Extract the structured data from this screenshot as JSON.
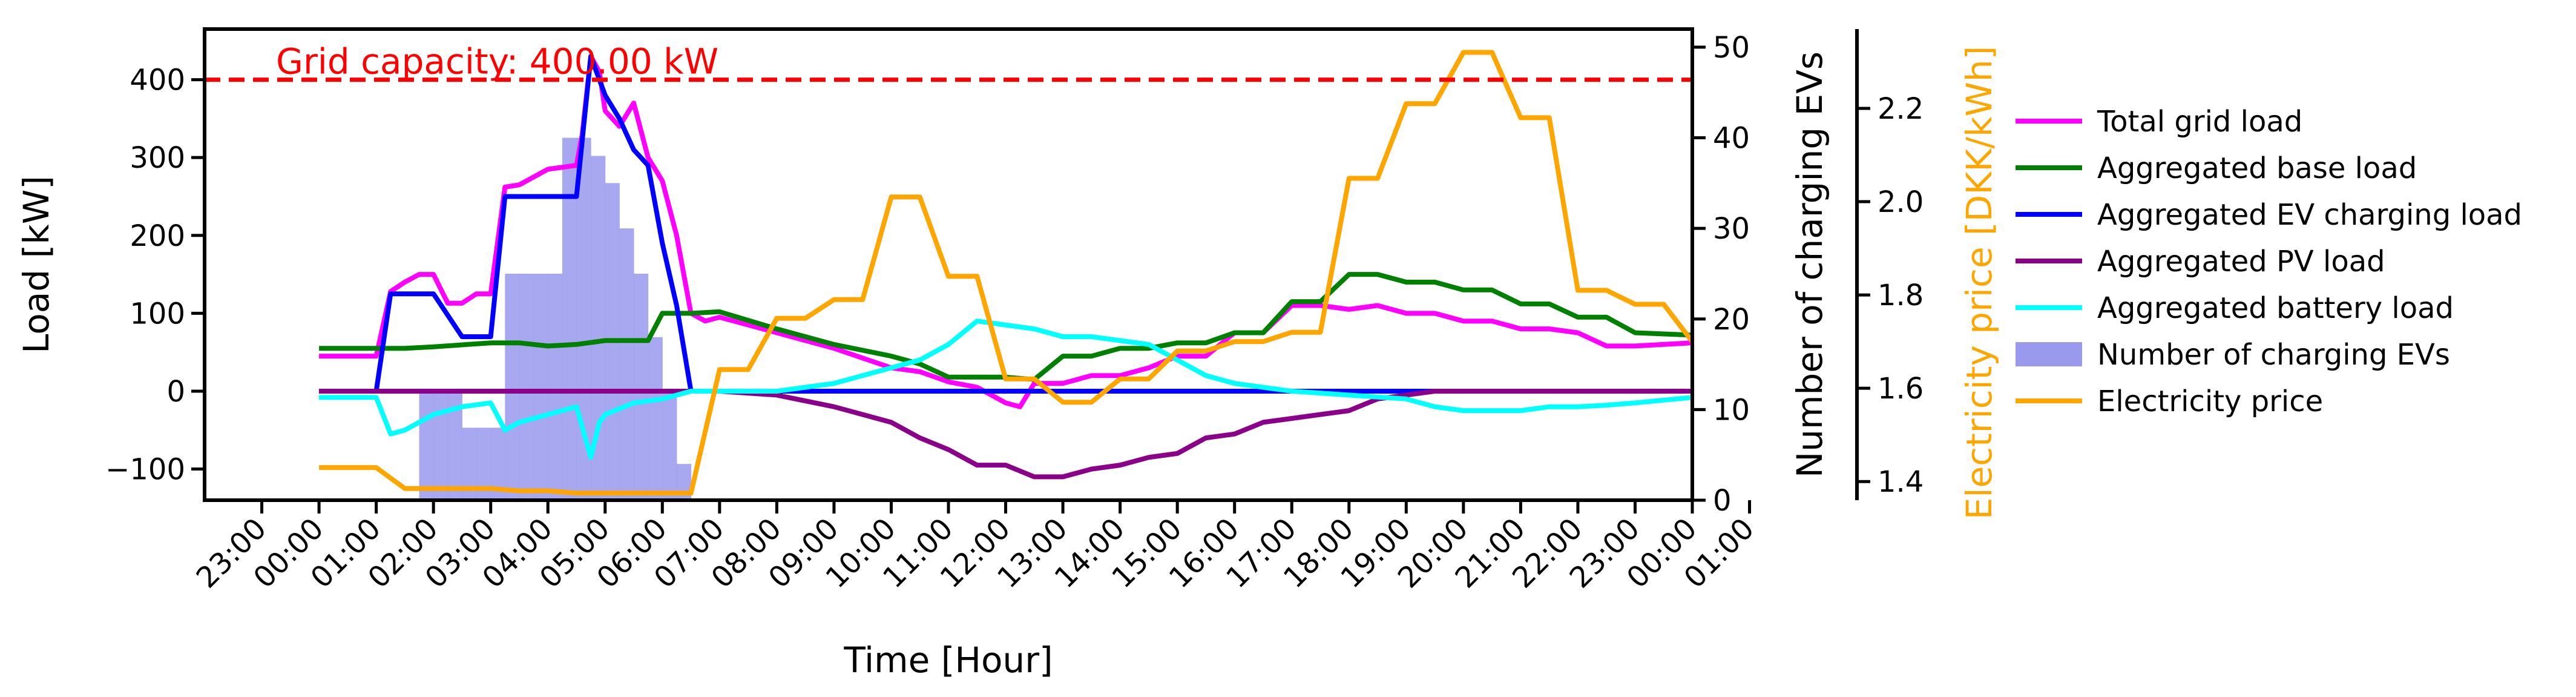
{
  "chart_data": {
    "type": "line",
    "xlabel": "Time [Hour]",
    "ylabel_left": "Load [kW]",
    "ylabel_right1": "Number of charging EVs",
    "ylabel_right2": "Electricity price [DKK/kWh]",
    "xlim": [
      -2,
      24
    ],
    "ylim_left": [
      -140,
      465
    ],
    "ylim_right1": [
      0,
      52
    ],
    "ylim_right2": [
      1.36,
      2.37
    ],
    "x_ticks": [
      -1,
      0,
      1,
      2,
      3,
      4,
      5,
      6,
      7,
      8,
      9,
      10,
      11,
      12,
      13,
      14,
      15,
      16,
      17,
      18,
      19,
      20,
      21,
      22,
      23,
      24,
      25
    ],
    "x_tick_labels": [
      "23:00",
      "00:00",
      "01:00",
      "02:00",
      "03:00",
      "04:00",
      "05:00",
      "06:00",
      "07:00",
      "08:00",
      "09:00",
      "10:00",
      "11:00",
      "12:00",
      "13:00",
      "14:00",
      "15:00",
      "16:00",
      "17:00",
      "18:00",
      "19:00",
      "20:00",
      "21:00",
      "22:00",
      "23:00",
      "00:00",
      "01:00"
    ],
    "y_ticks_left": [
      -100,
      0,
      100,
      200,
      300,
      400
    ],
    "y_tick_labels_left": [
      "−100",
      "0",
      "100",
      "200",
      "300",
      "400"
    ],
    "y_ticks_right1": [
      0,
      10,
      20,
      30,
      40,
      50
    ],
    "y_tick_labels_right1": [
      "0",
      "10",
      "20",
      "30",
      "40",
      "50"
    ],
    "y_ticks_right2": [
      1.4,
      1.6,
      1.8,
      2.0,
      2.2
    ],
    "y_tick_labels_right2": [
      "1.4",
      "1.6",
      "1.8",
      "2.0",
      "2.2"
    ],
    "grid": false,
    "legend_position": "right",
    "grid_capacity": {
      "value": 400,
      "label": "Grid capacity: 400.00 kW",
      "color": "#ff0000"
    },
    "series": [
      {
        "name": "Total grid load",
        "color": "#ff00ff",
        "axis": "left",
        "x": [
          0,
          1,
          1.25,
          1.5,
          1.75,
          2,
          2.25,
          2.5,
          2.75,
          3,
          3.25,
          3.5,
          4,
          4.5,
          4.6,
          4.75,
          4.9,
          5,
          5.25,
          5.5,
          5.75,
          6,
          6.25,
          6.5,
          6.75,
          7,
          8,
          9,
          10,
          10.5,
          11,
          11.5,
          12,
          12.25,
          12.5,
          13,
          13.5,
          14,
          14.5,
          15,
          15.5,
          16,
          16.5,
          17,
          17.5,
          18,
          18.5,
          19,
          19.5,
          20,
          20.5,
          21,
          21.5,
          22,
          22.5,
          23,
          23.5,
          24
        ],
        "y": [
          45,
          45,
          128,
          140,
          150,
          150,
          113,
          113,
          125,
          125,
          262,
          265,
          285,
          290,
          330,
          430,
          410,
          360,
          340,
          370,
          300,
          270,
          200,
          100,
          90,
          95,
          75,
          55,
          30,
          25,
          12,
          5,
          -15,
          -20,
          10,
          10,
          20,
          20,
          30,
          45,
          45,
          75,
          75,
          110,
          110,
          105,
          110,
          100,
          100,
          90,
          90,
          80,
          80,
          75,
          58,
          58,
          60,
          62
        ]
      },
      {
        "name": "Aggregated base load",
        "color": "#008000",
        "axis": "left",
        "x": [
          0,
          1,
          1.5,
          2,
          3,
          3.5,
          4,
          4.5,
          5,
          5.75,
          6,
          6.5,
          7,
          8,
          9,
          10,
          10.5,
          11,
          12,
          12.5,
          13,
          13.5,
          14,
          14.5,
          15,
          15.5,
          16,
          16.5,
          17,
          17.5,
          18,
          18.5,
          19,
          19.5,
          20,
          20.5,
          21,
          21.5,
          22,
          22.5,
          23,
          24
        ],
        "y": [
          55,
          55,
          55,
          57,
          62,
          62,
          58,
          60,
          65,
          65,
          100,
          100,
          102,
          80,
          60,
          45,
          35,
          18,
          18,
          15,
          45,
          45,
          55,
          55,
          62,
          62,
          75,
          75,
          115,
          115,
          150,
          150,
          140,
          140,
          130,
          130,
          112,
          112,
          95,
          95,
          75,
          72
        ]
      },
      {
        "name": "Aggregated EV charging load",
        "color": "#0000ff",
        "axis": "left",
        "x": [
          0,
          1,
          1.25,
          2,
          2.5,
          3,
          3.25,
          3.5,
          4,
          4.5,
          4.75,
          5,
          5.25,
          5.5,
          5.75,
          6,
          6.25,
          6.5,
          7,
          24
        ],
        "y": [
          0,
          0,
          125,
          125,
          70,
          70,
          250,
          250,
          250,
          250,
          430,
          380,
          350,
          310,
          290,
          190,
          110,
          0,
          0,
          0
        ]
      },
      {
        "name": "Aggregated PV load",
        "color": "#8b008b",
        "axis": "left",
        "x": [
          0,
          7,
          8,
          9,
          10,
          10.5,
          11,
          11.5,
          12,
          12.5,
          13,
          13.5,
          14,
          14.5,
          15,
          15.5,
          16,
          16.5,
          17,
          17.5,
          18,
          18.5,
          19,
          19.5,
          20,
          20.5,
          21,
          24
        ],
        "y": [
          0,
          0,
          -5,
          -20,
          -40,
          -60,
          -75,
          -95,
          -95,
          -110,
          -110,
          -100,
          -95,
          -85,
          -80,
          -60,
          -55,
          -40,
          -35,
          -30,
          -25,
          -10,
          -5,
          0,
          0,
          0,
          0,
          0
        ]
      },
      {
        "name": "Aggregated battery load",
        "color": "#00ffff",
        "axis": "left",
        "x": [
          0,
          1,
          1.25,
          1.5,
          2,
          2.5,
          3,
          3.25,
          3.5,
          4,
          4.5,
          4.75,
          4.9,
          5,
          5.5,
          6,
          6.5,
          7,
          8,
          9,
          10,
          10.5,
          11,
          11.5,
          12,
          12.5,
          13,
          13.5,
          14,
          14.5,
          15,
          15.5,
          16,
          17,
          18,
          19,
          19.5,
          20,
          20.5,
          21,
          21.5,
          22,
          22.5,
          23,
          24
        ],
        "y": [
          -8,
          -8,
          -55,
          -50,
          -30,
          -20,
          -15,
          -50,
          -40,
          -30,
          -20,
          -85,
          -40,
          -30,
          -15,
          -10,
          0,
          0,
          0,
          10,
          30,
          40,
          60,
          90,
          85,
          80,
          70,
          70,
          65,
          60,
          40,
          20,
          10,
          0,
          -5,
          -10,
          -20,
          -25,
          -25,
          -25,
          -20,
          -20,
          -18,
          -15,
          -8
        ]
      },
      {
        "name": "Electricity price",
        "color": "#ffa500",
        "axis": "right2",
        "x": [
          0,
          1,
          1.5,
          3,
          3.5,
          4,
          4.5,
          5,
          5.5,
          6.25,
          6.5,
          7,
          7.5,
          8,
          8.5,
          9,
          9.5,
          10,
          10.5,
          11,
          11.5,
          12,
          12.5,
          13,
          13.5,
          14,
          14.5,
          15,
          15.5,
          16,
          16.5,
          17,
          17.5,
          18,
          18.5,
          19,
          19.5,
          20,
          20.5,
          21,
          21.5,
          22,
          22.5,
          23,
          23.5,
          24
        ],
        "y": [
          1.43,
          1.43,
          1.385,
          1.385,
          1.38,
          1.38,
          1.375,
          1.375,
          1.375,
          1.375,
          1.375,
          1.64,
          1.64,
          1.75,
          1.75,
          1.79,
          1.79,
          2.01,
          2.01,
          1.84,
          1.84,
          1.62,
          1.62,
          1.57,
          1.57,
          1.62,
          1.62,
          1.68,
          1.68,
          1.7,
          1.7,
          1.72,
          1.72,
          2.05,
          2.05,
          2.21,
          2.21,
          2.32,
          2.32,
          2.18,
          2.18,
          1.81,
          1.81,
          1.78,
          1.78,
          1.7
        ]
      }
    ],
    "ev_bars": {
      "name": "Number of charging EVs",
      "color": "#9999ee",
      "axis": "right1",
      "x": [
        1.75,
        2.0,
        2.25,
        2.5,
        2.75,
        3.0,
        3.25,
        3.5,
        3.75,
        4.0,
        4.25,
        4.5,
        4.75,
        5.0,
        5.25,
        5.5,
        5.75,
        6.0,
        6.25
      ],
      "values": [
        12,
        12,
        12,
        8,
        8,
        8,
        25,
        25,
        25,
        25,
        40,
        40,
        38,
        35,
        30,
        25,
        18,
        12,
        4
      ]
    },
    "legend": [
      {
        "name": "Total grid load",
        "color": "#ff00ff",
        "kind": "line"
      },
      {
        "name": "Aggregated base load",
        "color": "#008000",
        "kind": "line"
      },
      {
        "name": "Aggregated EV charging load",
        "color": "#0000ff",
        "kind": "line"
      },
      {
        "name": "Aggregated PV load",
        "color": "#8b008b",
        "kind": "line"
      },
      {
        "name": "Aggregated battery load",
        "color": "#00ffff",
        "kind": "line"
      },
      {
        "name": "Number of charging EVs",
        "color": "#9999ee",
        "kind": "patch"
      },
      {
        "name": "Electricity price",
        "color": "#ffa500",
        "kind": "line"
      }
    ]
  }
}
